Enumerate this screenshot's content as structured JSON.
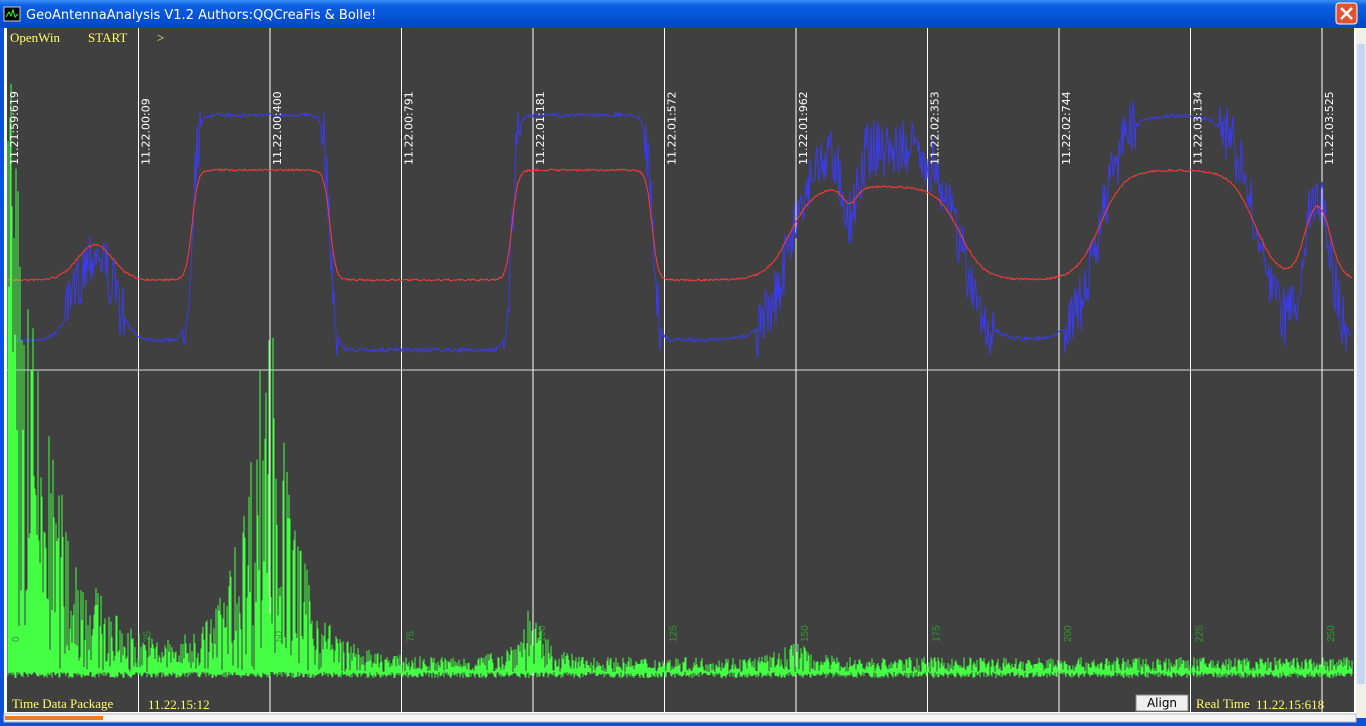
{
  "window": {
    "title": "GeoAntennaAnalysis V1.2 Authors:QQCreaFis & Bolle!"
  },
  "toolbar": {
    "items": [
      "OpenWin",
      "START",
      ">"
    ]
  },
  "time_markers": [
    "11.21:59:619",
    "11.22.00:09",
    "11.22.00:400",
    "11.22.00:791",
    "11.22.01:181",
    "11.22.01:572",
    "11.22.01:962",
    "11.22.02:353",
    "11.22.02:744",
    "11.22.03:134",
    "11.22.03:525"
  ],
  "sample_labels": [
    "0",
    "25",
    "50",
    "75",
    "100",
    "125",
    "150",
    "175",
    "200",
    "225",
    "250"
  ],
  "status": {
    "label": "Time Data Package",
    "value": "11.22.15:12",
    "button": "Align",
    "realtime_label": "Real Time",
    "realtime_value": "11.22.15:618"
  }
}
